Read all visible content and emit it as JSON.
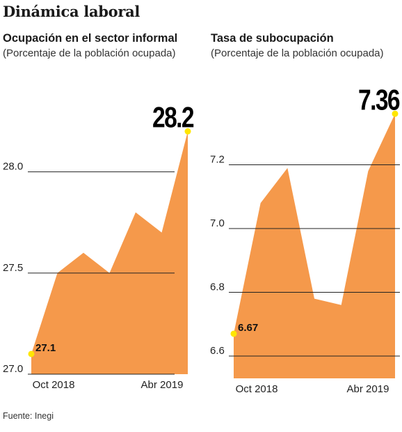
{
  "title": "Dinámica laboral",
  "source": "Fuente: Inegi",
  "colors": {
    "fill": "#F5994B",
    "marker": "#FFE600",
    "grid": "#222222"
  },
  "chart_data": [
    {
      "type": "area",
      "title": "Ocupación en el sector informal",
      "subtitle": "(Porcentaje de la población ocupada)",
      "x": [
        0,
        1,
        2,
        3,
        4,
        5,
        6
      ],
      "x_tick_labels": [
        "Oct 2018",
        "Abr 2019"
      ],
      "values": [
        27.1,
        27.5,
        27.6,
        27.5,
        27.8,
        27.7,
        28.2
      ],
      "ylim": [
        27.0,
        28.35
      ],
      "yticks": [
        27.0,
        27.5,
        28.0
      ],
      "ytick_labels": [
        "27.0",
        "27.5",
        "28.0"
      ],
      "start_label": "27.1",
      "end_label": "28.2",
      "grid": true
    },
    {
      "type": "area",
      "title": "Tasa de subocupación",
      "subtitle": "(Porcentaje de la población ocupada)",
      "x": [
        0,
        1,
        2,
        3,
        4,
        5,
        6
      ],
      "x_tick_labels": [
        "Oct 2018",
        "Abr 2019"
      ],
      "values": [
        6.67,
        7.08,
        7.19,
        6.78,
        6.76,
        7.18,
        7.36
      ],
      "ylim": [
        6.53,
        7.4
      ],
      "yticks": [
        6.6,
        6.8,
        7.0,
        7.2
      ],
      "ytick_labels": [
        "6.6",
        "6.8",
        "7.0",
        "7.2"
      ],
      "start_label": "6.67",
      "end_label": "7.36",
      "grid": true
    }
  ]
}
